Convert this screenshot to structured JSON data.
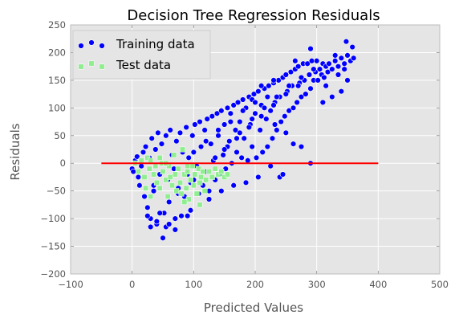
{
  "colors": {
    "background": "#e5e5e5",
    "grid": "#ffffff",
    "training": "#0000ff",
    "test": "#90ee90",
    "marker_edge": "#ffffff",
    "zero_line": "#ff0000",
    "tick_text": "#555555"
  },
  "chart_data": {
    "type": "scatter",
    "title": "Decision Tree Regression Residuals",
    "xlabel": "Predicted Values",
    "ylabel": "Residuals",
    "xlim": [
      -100,
      500
    ],
    "ylim": [
      -200,
      250
    ],
    "xticks": [
      -100,
      0,
      100,
      200,
      300,
      400,
      500
    ],
    "yticks": [
      -200,
      -150,
      -100,
      -50,
      0,
      50,
      100,
      150,
      200,
      250
    ],
    "xtick_labels": [
      "−100",
      "0",
      "100",
      "200",
      "300",
      "400",
      "500"
    ],
    "ytick_labels": [
      "−200",
      "−150",
      "−100",
      "−50",
      "0",
      "50",
      "100",
      "150",
      "200",
      "250"
    ],
    "grid": true,
    "legend_position": "top-left",
    "hline": {
      "y": 0,
      "xmin": -50,
      "xmax": 400
    },
    "series": [
      {
        "name": "Training data",
        "marker": "circle",
        "points": [
          [
            0,
            -10
          ],
          [
            2,
            -15
          ],
          [
            5,
            5
          ],
          [
            8,
            12
          ],
          [
            10,
            -25
          ],
          [
            12,
            -40
          ],
          [
            15,
            -5
          ],
          [
            18,
            20
          ],
          [
            20,
            -60
          ],
          [
            22,
            30
          ],
          [
            25,
            -80
          ],
          [
            28,
            10
          ],
          [
            30,
            -100
          ],
          [
            32,
            45
          ],
          [
            35,
            -50
          ],
          [
            38,
            25
          ],
          [
            40,
            -110
          ],
          [
            42,
            55
          ],
          [
            45,
            -20
          ],
          [
            48,
            35
          ],
          [
            50,
            -135
          ],
          [
            52,
            -90
          ],
          [
            55,
            50
          ],
          [
            58,
            -30
          ],
          [
            60,
            -70
          ],
          [
            62,
            60
          ],
          [
            65,
            15
          ],
          [
            68,
            -10
          ],
          [
            70,
            -120
          ],
          [
            72,
            40
          ],
          [
            75,
            -45
          ],
          [
            78,
            55
          ],
          [
            80,
            -95
          ],
          [
            82,
            20
          ],
          [
            85,
            -60
          ],
          [
            88,
            65
          ],
          [
            90,
            -20
          ],
          [
            92,
            10
          ],
          [
            95,
            -85
          ],
          [
            98,
            50
          ],
          [
            100,
            -30
          ],
          [
            102,
            70
          ],
          [
            105,
            -5
          ],
          [
            108,
            -55
          ],
          [
            110,
            75
          ],
          [
            112,
            30
          ],
          [
            115,
            -40
          ],
          [
            118,
            60
          ],
          [
            120,
            -15
          ],
          [
            122,
            80
          ],
          [
            125,
            -50
          ],
          [
            128,
            35
          ],
          [
            130,
            85
          ],
          [
            132,
            5
          ],
          [
            135,
            -30
          ],
          [
            138,
            90
          ],
          [
            140,
            50
          ],
          [
            142,
            -20
          ],
          [
            145,
            95
          ],
          [
            148,
            15
          ],
          [
            150,
            70
          ],
          [
            152,
            -10
          ],
          [
            155,
            100
          ],
          [
            158,
            40
          ],
          [
            160,
            90
          ],
          [
            162,
            0
          ],
          [
            165,
            105
          ],
          [
            168,
            60
          ],
          [
            170,
            20
          ],
          [
            172,
            110
          ],
          [
            175,
            75
          ],
          [
            178,
            10
          ],
          [
            180,
            115
          ],
          [
            182,
            45
          ],
          [
            185,
            100
          ],
          [
            188,
            5
          ],
          [
            190,
            120
          ],
          [
            192,
            70
          ],
          [
            195,
            30
          ],
          [
            198,
            125
          ],
          [
            200,
            90
          ],
          [
            202,
            10
          ],
          [
            205,
            130
          ],
          [
            208,
            60
          ],
          [
            210,
            105
          ],
          [
            212,
            20
          ],
          [
            215,
            135
          ],
          [
            218,
            80
          ],
          [
            220,
            30
          ],
          [
            222,
            140
          ],
          [
            225,
            95
          ],
          [
            228,
            45
          ],
          [
            230,
            145
          ],
          [
            232,
            110
          ],
          [
            235,
            60
          ],
          [
            238,
            150
          ],
          [
            240,
            120
          ],
          [
            242,
            75
          ],
          [
            245,
            155
          ],
          [
            248,
            85
          ],
          [
            250,
            160
          ],
          [
            252,
            130
          ],
          [
            255,
            95
          ],
          [
            258,
            165
          ],
          [
            260,
            140
          ],
          [
            262,
            100
          ],
          [
            265,
            170
          ],
          [
            268,
            110
          ],
          [
            270,
            175
          ],
          [
            272,
            145
          ],
          [
            275,
            120
          ],
          [
            278,
            180
          ],
          [
            280,
            150
          ],
          [
            282,
            125
          ],
          [
            285,
            180
          ],
          [
            288,
            160
          ],
          [
            290,
            135
          ],
          [
            292,
            185
          ],
          [
            295,
            150
          ],
          [
            298,
            165
          ],
          [
            300,
            185
          ],
          [
            302,
            150
          ],
          [
            305,
            170
          ],
          [
            308,
            160
          ],
          [
            310,
            180
          ],
          [
            312,
            155
          ],
          [
            315,
            175
          ],
          [
            318,
            165
          ],
          [
            320,
            180
          ],
          [
            325,
            170
          ],
          [
            330,
            185
          ],
          [
            335,
            175
          ],
          [
            340,
            190
          ],
          [
            345,
            180
          ],
          [
            350,
            195
          ],
          [
            355,
            185
          ],
          [
            360,
            190
          ],
          [
            232,
            70
          ],
          [
            250,
            55
          ],
          [
            262,
            35
          ],
          [
            275,
            30
          ],
          [
            290,
            0
          ],
          [
            310,
            110
          ],
          [
            325,
            120
          ],
          [
            340,
            130
          ],
          [
            350,
            150
          ],
          [
            348,
            220
          ],
          [
            358,
            210
          ],
          [
            330,
            195
          ],
          [
            290,
            207
          ],
          [
            265,
            185
          ],
          [
            230,
            150
          ],
          [
            210,
            140
          ],
          [
            195,
            115
          ],
          [
            240,
            -25
          ],
          [
            245,
            -20
          ],
          [
            225,
            -5
          ],
          [
            205,
            -25
          ],
          [
            185,
            -35
          ],
          [
            165,
            -40
          ],
          [
            145,
            -50
          ],
          [
            125,
            -65
          ],
          [
            110,
            -75
          ],
          [
            90,
            -95
          ],
          [
            70,
            -100
          ],
          [
            55,
            -115
          ],
          [
            40,
            -105
          ],
          [
            30,
            -115
          ],
          [
            25,
            -95
          ],
          [
            35,
            -40
          ],
          [
            45,
            -90
          ],
          [
            60,
            -110
          ],
          [
            75,
            -55
          ],
          [
            95,
            -35
          ],
          [
            115,
            -15
          ],
          [
            135,
            10
          ],
          [
            155,
            30
          ],
          [
            175,
            55
          ],
          [
            195,
            80
          ],
          [
            215,
            100
          ],
          [
            235,
            120
          ],
          [
            255,
            140
          ],
          [
            275,
            155
          ],
          [
            295,
            170
          ],
          [
            315,
            140
          ],
          [
            335,
            160
          ],
          [
            345,
            170
          ],
          [
            150,
            25
          ],
          [
            170,
            45
          ],
          [
            190,
            65
          ],
          [
            210,
            85
          ],
          [
            230,
            105
          ],
          [
            250,
            125
          ],
          [
            270,
            140
          ],
          [
            100,
            20
          ],
          [
            120,
            40
          ],
          [
            140,
            60
          ],
          [
            160,
            75
          ],
          [
            180,
            95
          ],
          [
            200,
            110
          ],
          [
            220,
            120
          ]
        ]
      },
      {
        "name": "Test data",
        "marker": "square",
        "points": [
          [
            5,
            0
          ],
          [
            10,
            -15
          ],
          [
            15,
            5
          ],
          [
            20,
            -25
          ],
          [
            22,
            -45
          ],
          [
            25,
            10
          ],
          [
            28,
            -10
          ],
          [
            30,
            -60
          ],
          [
            35,
            -20
          ],
          [
            38,
            -5
          ],
          [
            40,
            -35
          ],
          [
            45,
            -45
          ],
          [
            48,
            0
          ],
          [
            50,
            -15
          ],
          [
            55,
            -30
          ],
          [
            58,
            -60
          ],
          [
            60,
            -5
          ],
          [
            62,
            -25
          ],
          [
            65,
            -40
          ],
          [
            68,
            15
          ],
          [
            70,
            -20
          ],
          [
            72,
            -50
          ],
          [
            75,
            -10
          ],
          [
            78,
            -35
          ],
          [
            80,
            -55
          ],
          [
            82,
            25
          ],
          [
            85,
            -20
          ],
          [
            88,
            -45
          ],
          [
            90,
            -15
          ],
          [
            92,
            -65
          ],
          [
            95,
            -30
          ],
          [
            98,
            -5
          ],
          [
            100,
            -40
          ],
          [
            102,
            -20
          ],
          [
            105,
            -55
          ],
          [
            108,
            -10
          ],
          [
            110,
            -35
          ],
          [
            112,
            -25
          ],
          [
            115,
            -15
          ],
          [
            118,
            -50
          ],
          [
            120,
            -30
          ],
          [
            125,
            -15
          ],
          [
            130,
            -25
          ],
          [
            135,
            -10
          ],
          [
            140,
            -20
          ],
          [
            145,
            -15
          ],
          [
            150,
            -25
          ],
          [
            155,
            -20
          ],
          [
            85,
            -70
          ],
          [
            110,
            -75
          ],
          [
            90,
            -5
          ],
          [
            55,
            0
          ],
          [
            45,
            10
          ],
          [
            30,
            5
          ]
        ]
      }
    ]
  }
}
